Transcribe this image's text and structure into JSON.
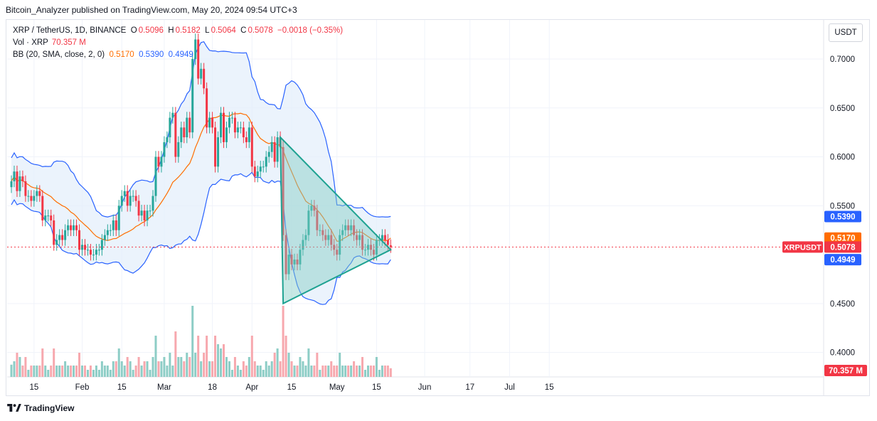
{
  "header": {
    "publisher_line": "Bitcoin_Analyzer published on TradingView.com, May 20, 2024 09:54 UTC+3"
  },
  "legend": {
    "symbol": "XRP / TetherUS, 1D, BINANCE",
    "o_label": "O",
    "o_value": "0.5096",
    "h_label": "H",
    "h_value": "0.5182",
    "l_label": "L",
    "l_value": "0.5064",
    "c_label": "C",
    "c_value": "0.5078",
    "change": "−0.0018 (−0.35%)",
    "vol_label": "Vol · XRP",
    "vol_value": "70.357 M",
    "bb_label": "BB (20, SMA, close, 2, 0)",
    "bb_mid": "0.5170",
    "bb_upper": "0.5390",
    "bb_lower": "0.4949"
  },
  "currency": "USDT",
  "footer": {
    "brand": "TradingView"
  },
  "colors": {
    "up": "#26a69a",
    "down": "#f23645",
    "up_volume": "#8dcdc6",
    "down_volume": "#f7a8ae",
    "bb_band": "#2962ff",
    "bb_basis": "#ff6d00",
    "bb_fill": "#e3eefb",
    "triangle_fill": "#80cbc4",
    "triangle_stroke": "#1ea291",
    "price_line": "#f23645"
  },
  "chart_data": {
    "type": "candlestick",
    "symbol": "XRPUSDT",
    "interval": "1D",
    "exchange": "BINANCE",
    "ylim": [
      0.375,
      0.74
    ],
    "y_ticks": [
      "0.7000",
      "0.6500",
      "0.6000",
      "0.5500",
      "0.4500",
      "0.4000"
    ],
    "x_ticks": [
      {
        "label": "15",
        "date": "2024-01-15"
      },
      {
        "label": "Feb",
        "date": "2024-02-01"
      },
      {
        "label": "15",
        "date": "2024-02-15"
      },
      {
        "label": "Mar",
        "date": "2024-03-01"
      },
      {
        "label": "18",
        "date": "2024-03-18"
      },
      {
        "label": "Apr",
        "date": "2024-04-01"
      },
      {
        "label": "15",
        "date": "2024-04-15"
      },
      {
        "label": "May",
        "date": "2024-05-01"
      },
      {
        "label": "15",
        "date": "2024-05-15"
      },
      {
        "label": "Jun",
        "date": "2024-06-01"
      },
      {
        "label": "17",
        "date": "2024-06-17"
      },
      {
        "label": "Jul",
        "date": "2024-07-01"
      },
      {
        "label": "15",
        "date": "2024-07-15"
      }
    ],
    "price_labels": [
      {
        "label": "",
        "value": "0.5390",
        "color": "#2962ff"
      },
      {
        "label": "",
        "value": "0.5170",
        "color": "#ff6d00"
      },
      {
        "label": "XRPUSDT",
        "value": "0.5078",
        "color": "#f23645"
      },
      {
        "label": "",
        "value": "0.4949",
        "color": "#2962ff"
      }
    ],
    "volume_label": "70.357 M",
    "current_price": 0.5078,
    "closes": [
      [
        "2024-01-07",
        0.575
      ],
      [
        "2024-01-08",
        0.585
      ],
      [
        "2024-01-09",
        0.565
      ],
      [
        "2024-01-10",
        0.58
      ],
      [
        "2024-01-11",
        0.575
      ],
      [
        "2024-01-12",
        0.56
      ],
      [
        "2024-01-13",
        0.56
      ],
      [
        "2024-01-14",
        0.555
      ],
      [
        "2024-01-15",
        0.56
      ],
      [
        "2024-01-16",
        0.565
      ],
      [
        "2024-01-17",
        0.56
      ],
      [
        "2024-01-18",
        0.535
      ],
      [
        "2024-01-19",
        0.54
      ],
      [
        "2024-01-20",
        0.54
      ],
      [
        "2024-01-21",
        0.535
      ],
      [
        "2024-01-22",
        0.51
      ],
      [
        "2024-01-23",
        0.515
      ],
      [
        "2024-01-24",
        0.52
      ],
      [
        "2024-01-25",
        0.515
      ],
      [
        "2024-01-26",
        0.525
      ],
      [
        "2024-01-27",
        0.53
      ],
      [
        "2024-01-28",
        0.525
      ],
      [
        "2024-01-29",
        0.53
      ],
      [
        "2024-01-30",
        0.525
      ],
      [
        "2024-01-31",
        0.505
      ],
      [
        "2024-02-01",
        0.51
      ],
      [
        "2024-02-02",
        0.505
      ],
      [
        "2024-02-03",
        0.505
      ],
      [
        "2024-02-04",
        0.5
      ],
      [
        "2024-02-05",
        0.5
      ],
      [
        "2024-02-06",
        0.505
      ],
      [
        "2024-02-07",
        0.505
      ],
      [
        "2024-02-08",
        0.515
      ],
      [
        "2024-02-09",
        0.52
      ],
      [
        "2024-02-10",
        0.525
      ],
      [
        "2024-02-11",
        0.525
      ],
      [
        "2024-02-12",
        0.535
      ],
      [
        "2024-02-13",
        0.525
      ],
      [
        "2024-02-14",
        0.55
      ],
      [
        "2024-02-15",
        0.56
      ],
      [
        "2024-02-16",
        0.565
      ],
      [
        "2024-02-17",
        0.55
      ],
      [
        "2024-02-18",
        0.56
      ],
      [
        "2024-02-19",
        0.56
      ],
      [
        "2024-02-20",
        0.555
      ],
      [
        "2024-02-21",
        0.54
      ],
      [
        "2024-02-22",
        0.545
      ],
      [
        "2024-02-23",
        0.535
      ],
      [
        "2024-02-24",
        0.545
      ],
      [
        "2024-02-25",
        0.545
      ],
      [
        "2024-02-26",
        0.56
      ],
      [
        "2024-02-27",
        0.6
      ],
      [
        "2024-02-28",
        0.59
      ],
      [
        "2024-02-29",
        0.6
      ],
      [
        "2024-03-01",
        0.615
      ],
      [
        "2024-03-02",
        0.62
      ],
      [
        "2024-03-03",
        0.64
      ],
      [
        "2024-03-04",
        0.645
      ],
      [
        "2024-03-05",
        0.6
      ],
      [
        "2024-03-06",
        0.615
      ],
      [
        "2024-03-07",
        0.63
      ],
      [
        "2024-03-08",
        0.62
      ],
      [
        "2024-03-09",
        0.64
      ],
      [
        "2024-03-10",
        0.625
      ],
      [
        "2024-03-11",
        0.7
      ],
      [
        "2024-03-12",
        0.72
      ],
      [
        "2024-03-13",
        0.68
      ],
      [
        "2024-03-14",
        0.69
      ],
      [
        "2024-03-15",
        0.67
      ],
      [
        "2024-03-16",
        0.63
      ],
      [
        "2024-03-17",
        0.64
      ],
      [
        "2024-03-18",
        0.63
      ],
      [
        "2024-03-19",
        0.59
      ],
      [
        "2024-03-20",
        0.62
      ],
      [
        "2024-03-21",
        0.645
      ],
      [
        "2024-03-22",
        0.615
      ],
      [
        "2024-03-23",
        0.63
      ],
      [
        "2024-03-24",
        0.64
      ],
      [
        "2024-03-25",
        0.64
      ],
      [
        "2024-03-26",
        0.625
      ],
      [
        "2024-03-27",
        0.63
      ],
      [
        "2024-03-28",
        0.63
      ],
      [
        "2024-03-29",
        0.62
      ],
      [
        "2024-03-30",
        0.615
      ],
      [
        "2024-03-31",
        0.63
      ],
      [
        "2024-04-01",
        0.59
      ],
      [
        "2024-04-02",
        0.58
      ],
      [
        "2024-04-03",
        0.585
      ],
      [
        "2024-04-04",
        0.59
      ],
      [
        "2024-04-05",
        0.59
      ],
      [
        "2024-04-06",
        0.6
      ],
      [
        "2024-04-07",
        0.605
      ],
      [
        "2024-04-08",
        0.615
      ],
      [
        "2024-04-09",
        0.595
      ],
      [
        "2024-04-10",
        0.62
      ],
      [
        "2024-04-11",
        0.61
      ],
      [
        "2024-04-12",
        0.52
      ],
      [
        "2024-04-13",
        0.48
      ],
      [
        "2024-04-14",
        0.5
      ],
      [
        "2024-04-15",
        0.49
      ],
      [
        "2024-04-16",
        0.495
      ],
      [
        "2024-04-17",
        0.49
      ],
      [
        "2024-04-18",
        0.505
      ],
      [
        "2024-04-19",
        0.515
      ],
      [
        "2024-04-20",
        0.52
      ],
      [
        "2024-04-21",
        0.545
      ],
      [
        "2024-04-22",
        0.55
      ],
      [
        "2024-04-23",
        0.545
      ],
      [
        "2024-04-24",
        0.525
      ],
      [
        "2024-04-25",
        0.525
      ],
      [
        "2024-04-26",
        0.52
      ],
      [
        "2024-04-27",
        0.515
      ],
      [
        "2024-04-28",
        0.52
      ],
      [
        "2024-04-29",
        0.51
      ],
      [
        "2024-04-30",
        0.505
      ],
      [
        "2024-05-01",
        0.5
      ],
      [
        "2024-05-02",
        0.52
      ],
      [
        "2024-05-03",
        0.525
      ],
      [
        "2024-05-04",
        0.53
      ],
      [
        "2024-05-05",
        0.525
      ],
      [
        "2024-05-06",
        0.53
      ],
      [
        "2024-05-07",
        0.52
      ],
      [
        "2024-05-08",
        0.515
      ],
      [
        "2024-05-09",
        0.52
      ],
      [
        "2024-05-10",
        0.505
      ],
      [
        "2024-05-11",
        0.505
      ],
      [
        "2024-05-12",
        0.51
      ],
      [
        "2024-05-13",
        0.505
      ],
      [
        "2024-05-14",
        0.5
      ],
      [
        "2024-05-15",
        0.515
      ],
      [
        "2024-05-16",
        0.515
      ],
      [
        "2024-05-17",
        0.52
      ],
      [
        "2024-05-18",
        0.515
      ],
      [
        "2024-05-19",
        0.51
      ],
      [
        "2024-05-20",
        0.5078
      ]
    ],
    "bollinger_bands": {
      "period": 20,
      "std_dev": 2,
      "basis_last": 0.517,
      "upper_last": 0.539,
      "lower_last": 0.4949
    },
    "triangle_pattern": {
      "points": [
        [
          "2024-04-11",
          0.62
        ],
        [
          "2024-04-12",
          0.45
        ],
        [
          "2024-05-20",
          0.505
        ]
      ]
    }
  }
}
